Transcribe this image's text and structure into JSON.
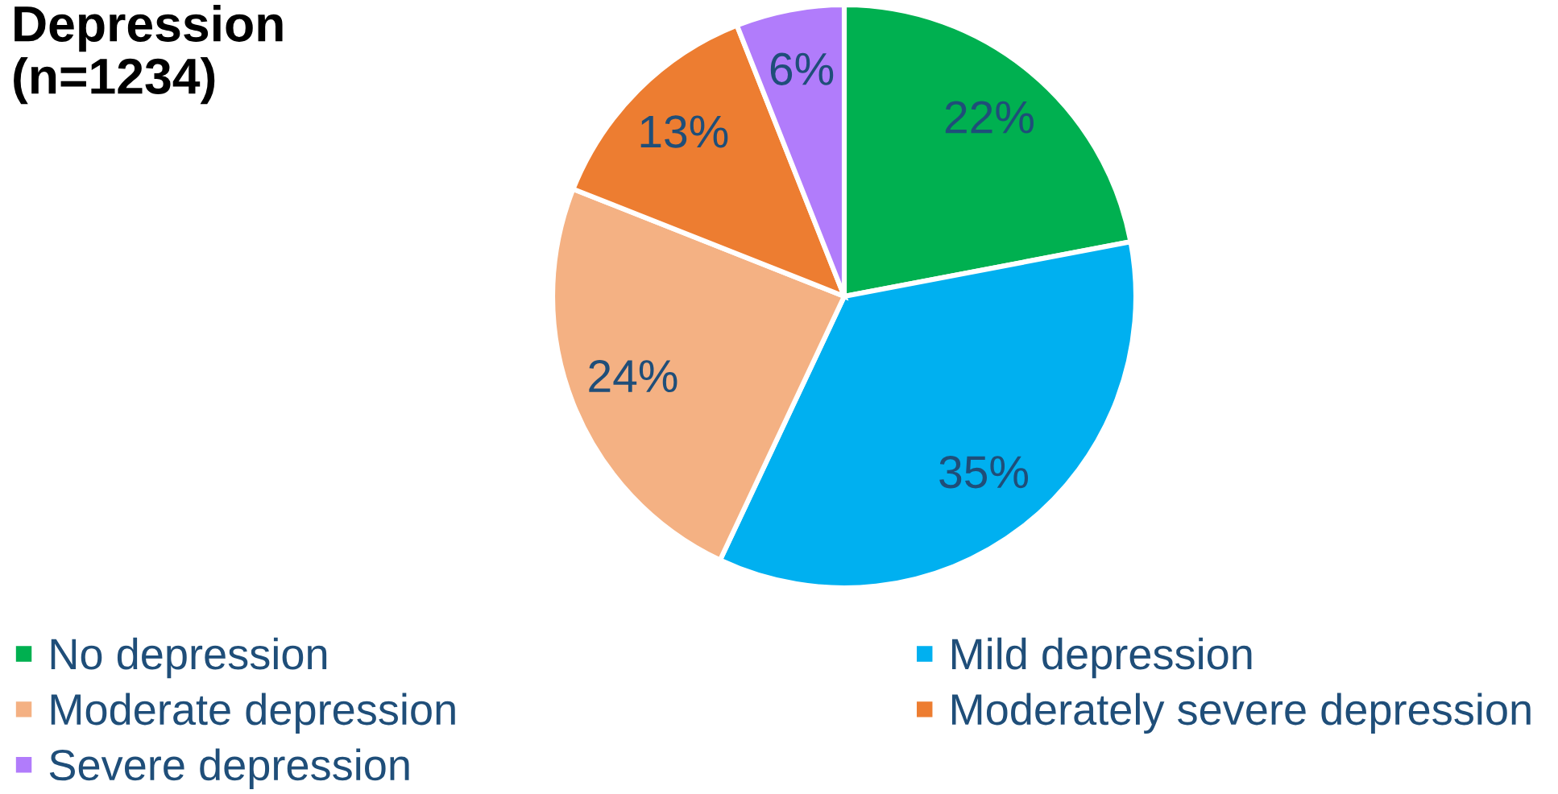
{
  "chart_data": {
    "type": "pie",
    "title": "Depression\n(n=1234)",
    "categories": [
      "No depression",
      "Mild depression",
      "Moderate depression",
      "Moderately severe depression",
      "Severe depression"
    ],
    "values": [
      22,
      35,
      24,
      13,
      6
    ],
    "colors": [
      "#00b050",
      "#00b0f0",
      "#f4b183",
      "#ed7d31",
      "#b17cfb"
    ],
    "value_labels": [
      "22%",
      "35%",
      "24%",
      "13%",
      "6%"
    ],
    "legend": "bottom"
  }
}
